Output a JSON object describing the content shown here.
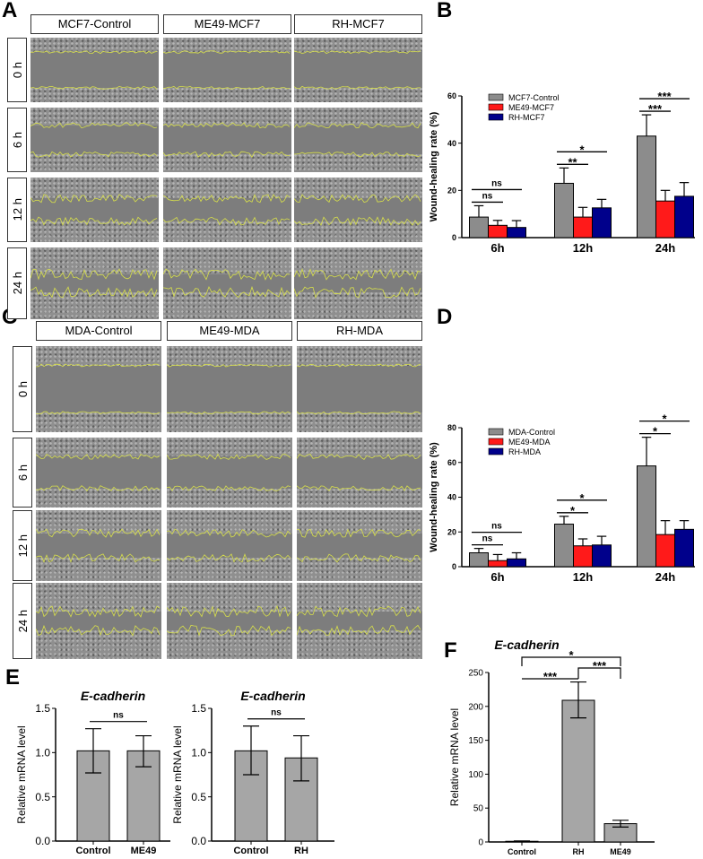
{
  "panels": {
    "A": "A",
    "B": "B",
    "C": "C",
    "D": "D",
    "E": "E",
    "F": "F"
  },
  "panel_a": {
    "columns": [
      "MCF7-Control",
      "ME49-MCF7",
      "RH-MCF7"
    ],
    "rows": [
      "0 h",
      "6 h",
      "12 h",
      "24 h"
    ]
  },
  "panel_c": {
    "columns": [
      "MDA-Control",
      "ME49-MDA",
      "RH-MDA"
    ],
    "rows": [
      "0 h",
      "6 h",
      "12 h",
      "24 h"
    ]
  },
  "colors": {
    "control": "#8c8c8c",
    "me49": "#ff1a1a",
    "rh": "#00008b",
    "wound_edge": "#d8e04a"
  },
  "chart_data": [
    {
      "id": "B",
      "type": "bar",
      "title": "",
      "xlabel": "",
      "ylabel": "Wound-healing rate (%)",
      "ylim": [
        0,
        60
      ],
      "yticks": [
        0,
        20,
        40,
        60
      ],
      "categories": [
        "6h",
        "12h",
        "24h"
      ],
      "legend": "top-left",
      "series": [
        {
          "name": "MCF7-Control",
          "color": "#8c8c8c",
          "values": [
            8.7,
            23,
            43
          ],
          "err_upper": [
            13.5,
            29.5,
            52
          ]
        },
        {
          "name": "ME49-MCF7",
          "color": "#ff1a1a",
          "values": [
            5.2,
            8.7,
            15.5
          ],
          "err_upper": [
            7.3,
            12.8,
            20
          ]
        },
        {
          "name": "RH-MCF7",
          "color": "#00008b",
          "values": [
            4.3,
            12.6,
            17.5
          ],
          "err_upper": [
            7.2,
            16.2,
            23.3
          ]
        }
      ],
      "significance": [
        {
          "category": "6h",
          "pair": [
            0,
            1
          ],
          "label": "ns"
        },
        {
          "category": "6h",
          "pair": [
            0,
            2
          ],
          "label": "ns"
        },
        {
          "category": "12h",
          "pair": [
            0,
            1
          ],
          "label": "**"
        },
        {
          "category": "12h",
          "pair": [
            0,
            2
          ],
          "label": "*"
        },
        {
          "category": "24h",
          "pair": [
            0,
            1
          ],
          "label": "***"
        },
        {
          "category": "24h",
          "pair": [
            0,
            2
          ],
          "label": "***"
        }
      ]
    },
    {
      "id": "D",
      "type": "bar",
      "title": "",
      "xlabel": "",
      "ylabel": "Wound-healing rate (%)",
      "ylim": [
        0,
        80
      ],
      "yticks": [
        0,
        20,
        40,
        60,
        80
      ],
      "categories": [
        "6h",
        "12h",
        "24h"
      ],
      "legend": "top-left",
      "series": [
        {
          "name": "MDA-Control",
          "color": "#8c8c8c",
          "values": [
            8,
            24.5,
            58
          ],
          "err_upper": [
            10.5,
            29,
            74.5
          ]
        },
        {
          "name": "ME49-MDA",
          "color": "#ff1a1a",
          "values": [
            3.5,
            12,
            18.5
          ],
          "err_upper": [
            7,
            16,
            26.5
          ]
        },
        {
          "name": "RH-MDA",
          "color": "#00008b",
          "values": [
            4.5,
            12.5,
            21.5
          ],
          "err_upper": [
            8,
            17.5,
            26.5
          ]
        }
      ],
      "significance": [
        {
          "category": "6h",
          "pair": [
            0,
            1
          ],
          "label": "ns"
        },
        {
          "category": "6h",
          "pair": [
            0,
            2
          ],
          "label": "ns"
        },
        {
          "category": "12h",
          "pair": [
            0,
            1
          ],
          "label": "*"
        },
        {
          "category": "12h",
          "pair": [
            0,
            2
          ],
          "label": "*"
        },
        {
          "category": "24h",
          "pair": [
            0,
            1
          ],
          "label": "*"
        },
        {
          "category": "24h",
          "pair": [
            0,
            2
          ],
          "label": "*"
        }
      ]
    },
    {
      "id": "E1",
      "type": "bar",
      "title": "E-cadherin",
      "xlabel": "",
      "ylabel": "Relative mRNA level",
      "ylim": [
        0,
        1.5
      ],
      "yticks": [
        "0.0",
        "0.5",
        "1.0",
        "1.5"
      ],
      "categories": [
        "Control",
        "ME49"
      ],
      "series": [
        {
          "name": "E-cadherin",
          "color": "#a6a6a6",
          "values": [
            1.02,
            1.02
          ],
          "err_lower": [
            0.77,
            0.84
          ],
          "err_upper": [
            1.27,
            1.19
          ]
        }
      ],
      "significance": [
        {
          "pair": [
            0,
            1
          ],
          "label": "ns"
        }
      ]
    },
    {
      "id": "E2",
      "type": "bar",
      "title": "E-cadherin",
      "xlabel": "",
      "ylabel": "Relative mRNA level",
      "ylim": [
        0,
        1.5
      ],
      "yticks": [
        "0.0",
        "0.5",
        "1.0",
        "1.5"
      ],
      "categories": [
        "Control",
        "RH"
      ],
      "series": [
        {
          "name": "E-cadherin",
          "color": "#a6a6a6",
          "values": [
            1.02,
            0.94
          ],
          "err_lower": [
            0.75,
            0.68
          ],
          "err_upper": [
            1.3,
            1.19
          ]
        }
      ],
      "significance": [
        {
          "pair": [
            0,
            1
          ],
          "label": "ns"
        }
      ]
    },
    {
      "id": "F",
      "type": "bar",
      "title": "E-cadherin",
      "xlabel": "",
      "ylabel": "Relative mRNA level",
      "ylim": [
        0,
        250
      ],
      "yticks": [
        0,
        50,
        100,
        150,
        200,
        250
      ],
      "categories": [
        "Control",
        "RH",
        "ME49"
      ],
      "series": [
        {
          "name": "E-cadherin",
          "color": "#a6a6a6",
          "values": [
            1,
            209,
            27
          ],
          "err_lower": [
            0.5,
            183,
            22
          ],
          "err_upper": [
            1.5,
            236,
            32
          ]
        }
      ],
      "significance": [
        {
          "pair": [
            0,
            1
          ],
          "label": "***"
        },
        {
          "pair": [
            1,
            2
          ],
          "label": "***"
        },
        {
          "pair": [
            0,
            2
          ],
          "label": "*"
        }
      ]
    }
  ]
}
